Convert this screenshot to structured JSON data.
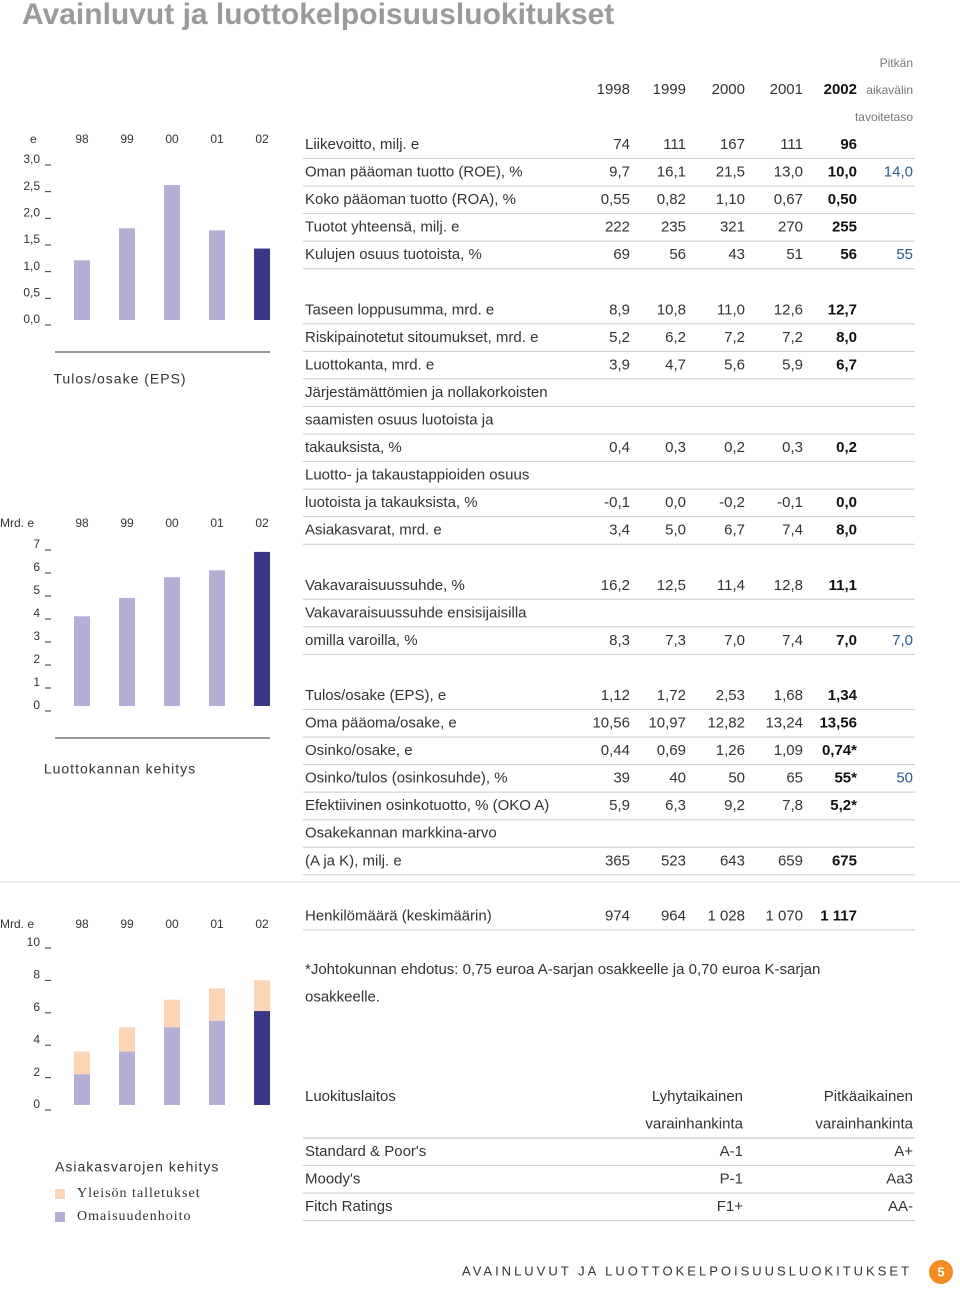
{
  "title": "Avainluvut ja luottokelpoisuusluokitukset",
  "charts": [
    {
      "type": "bar",
      "unit_label": "e",
      "title": "Tulos/osake (EPS)",
      "categories": [
        "98",
        "99",
        "00",
        "01",
        "02"
      ],
      "values": [
        1.12,
        1.72,
        2.53,
        1.68,
        1.34
      ],
      "colors": [
        "#b5aed6",
        "#b5aed6",
        "#b5aed6",
        "#b5aed6",
        "#3b3788"
      ],
      "ylim": [
        0,
        3
      ],
      "yticks": [
        {
          "value": 0,
          "label": "0,0"
        },
        {
          "value": 0.5,
          "label": "0,5"
        },
        {
          "value": 1,
          "label": "1,0"
        },
        {
          "value": 1.5,
          "label": "1,5"
        },
        {
          "value": 2,
          "label": "2,0"
        },
        {
          "value": 2.5,
          "label": "2,5"
        },
        {
          "value": 3,
          "label": "3,0"
        }
      ]
    },
    {
      "type": "bar",
      "unit_label": "Mrd. e",
      "title": "Luottokannan kehitys",
      "categories": [
        "98",
        "99",
        "00",
        "01",
        "02"
      ],
      "values": [
        3.9,
        4.7,
        5.6,
        5.9,
        6.7
      ],
      "colors": [
        "#b5aed6",
        "#b5aed6",
        "#b5aed6",
        "#b5aed6",
        "#3b3788"
      ],
      "ylim": [
        0,
        7
      ],
      "yticks": [
        0,
        1,
        2,
        3,
        4,
        5,
        6,
        7
      ]
    },
    {
      "type": "stacked_bar",
      "unit_label": "Mrd. e",
      "title": "Asiakasvarojen kehitys",
      "categories": [
        "98",
        "99",
        "00",
        "01",
        "02"
      ],
      "series": [
        {
          "name": "Yleisön talletukset",
          "color": "#fbd5b5",
          "colors": [
            "#fbd5b5",
            "#fbd5b5",
            "#fbd5b5",
            "#fbd5b5",
            "#fbd5b5"
          ],
          "values": [
            1.4,
            1.5,
            1.7,
            2.0,
            1.9
          ]
        },
        {
          "name": "Omaisuudenhoito",
          "color": "#b5aed6",
          "colors": [
            "#b5aed6",
            "#b5aed6",
            "#b5aed6",
            "#b5aed6",
            "#3b3788"
          ],
          "values": [
            1.9,
            3.3,
            4.8,
            5.2,
            5.8
          ]
        }
      ],
      "ylim": [
        0,
        10
      ],
      "yticks": [
        0,
        2,
        4,
        6,
        8,
        10
      ]
    }
  ],
  "key_figures": {
    "years": [
      "1998",
      "1999",
      "2000",
      "2001",
      "2002"
    ],
    "target_header": [
      "Pitkän",
      "aikavälin",
      "tavoitetaso"
    ],
    "groups": [
      [
        {
          "label": [
            "Liikevoitto, milj. e"
          ],
          "values": [
            "74",
            "111",
            "167",
            "111",
            "96"
          ]
        },
        {
          "label": [
            "Oman pääoman tuotto (ROE), %"
          ],
          "values": [
            "9,7",
            "16,1",
            "21,5",
            "13,0",
            "10,0"
          ],
          "target": "14,0"
        },
        {
          "label": [
            "Koko pääoman tuotto (ROA), %"
          ],
          "values": [
            "0,55",
            "0,82",
            "1,10",
            "0,67",
            "0,50"
          ]
        },
        {
          "label": [
            "Tuotot yhteensä, milj. e"
          ],
          "values": [
            "222",
            "235",
            "321",
            "270",
            "255"
          ]
        },
        {
          "label": [
            "Kulujen osuus tuotoista, %"
          ],
          "values": [
            "69",
            "56",
            "43",
            "51",
            "56"
          ],
          "target": "55"
        }
      ],
      [
        {
          "label": [
            "Taseen loppusumma, mrd. e"
          ],
          "values": [
            "8,9",
            "10,8",
            "11,0",
            "12,6",
            "12,7"
          ]
        },
        {
          "label": [
            "Riskipainotetut sitoumukset, mrd. e"
          ],
          "values": [
            "5,2",
            "6,2",
            "7,2",
            "7,2",
            "8,0"
          ]
        },
        {
          "label": [
            "Luottokanta, mrd. e"
          ],
          "values": [
            "3,9",
            "4,7",
            "5,6",
            "5,9",
            "6,7"
          ]
        },
        {
          "label": [
            "Järjestämättömien ja nollakorkoisten",
            "saamisten osuus luotoista ja",
            "takauksista, %"
          ],
          "values": [
            "0,4",
            "0,3",
            "0,2",
            "0,3",
            "0,2"
          ]
        },
        {
          "label": [
            "Luotto- ja takaustappioiden osuus",
            "luotoista ja takauksista, %"
          ],
          "values": [
            "-0,1",
            "0,0",
            "-0,2",
            "-0,1",
            "0,0"
          ]
        },
        {
          "label": [
            "Asiakasvarat, mrd. e"
          ],
          "values": [
            "3,4",
            "5,0",
            "6,7",
            "7,4",
            "8,0"
          ]
        }
      ],
      [
        {
          "label": [
            "Vakavaraisuussuhde, %"
          ],
          "values": [
            "16,2",
            "12,5",
            "11,4",
            "12,8",
            "11,1"
          ]
        },
        {
          "label": [
            "Vakavaraisuussuhde ensisijaisilla",
            "omilla varoilla, %"
          ],
          "values": [
            "8,3",
            "7,3",
            "7,0",
            "7,4",
            "7,0"
          ],
          "target": "7,0"
        }
      ],
      [
        {
          "label": [
            "Tulos/osake (EPS), e"
          ],
          "values": [
            "1,12",
            "1,72",
            "2,53",
            "1,68",
            "1,34"
          ]
        },
        {
          "label": [
            "Oma pääoma/osake, e"
          ],
          "values": [
            "10,56",
            "10,97",
            "12,82",
            "13,24",
            "13,56"
          ]
        },
        {
          "label": [
            "Osinko/osake, e"
          ],
          "values": [
            "0,44",
            "0,69",
            "1,26",
            "1,09",
            "0,74*"
          ]
        },
        {
          "label": [
            "Osinko/tulos (osinkosuhde), %"
          ],
          "values": [
            "39",
            "40",
            "50",
            "65",
            "55*"
          ],
          "target": "50"
        },
        {
          "label": [
            "Efektiivinen osinkotuotto, % (OKO A)"
          ],
          "values": [
            "5,9",
            "6,3",
            "9,2",
            "7,8",
            "5,2*"
          ]
        },
        {
          "label": [
            "Osakekannan markkina-arvo",
            "(A ja K), milj. e"
          ],
          "values": [
            "365",
            "523",
            "643",
            "659",
            "675"
          ]
        }
      ],
      [
        {
          "label": [
            "Henkilömäärä (keskimäärin)"
          ],
          "values": [
            "974",
            "964",
            "1 028",
            "1 070",
            "1 117"
          ]
        }
      ]
    ]
  },
  "footnote": [
    "*Johtokunnan ehdotus: 0,75 euroa A-sarjan osakkeelle ja 0,70 euroa K-sarjan",
    "osakkeelle."
  ],
  "ratings": {
    "headers": [
      [
        "Luokituslaitos"
      ],
      [
        "Lyhytaikainen",
        "varainhankinta"
      ],
      [
        "Pitkäaikainen",
        "varainhankinta"
      ]
    ],
    "rows": [
      [
        "Standard & Poor's",
        "A-1",
        "A+"
      ],
      [
        "Moody's",
        "P-1",
        "Aa3"
      ],
      [
        "Fitch Ratings",
        "F1+",
        "AA-"
      ]
    ]
  },
  "footer": {
    "text": "AVAINLUVUT JA LUOTTOKELPOISUUSLUOKITUKSET",
    "page": "5"
  }
}
